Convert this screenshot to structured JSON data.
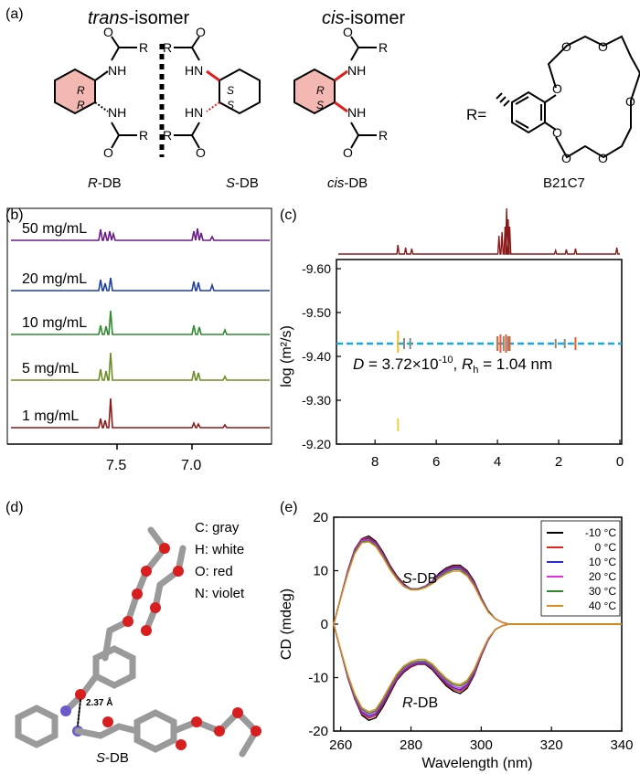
{
  "panel_a": {
    "label": "(a)",
    "trans_header": {
      "italic": "trans",
      "rest": "-isomer"
    },
    "cis_header": {
      "italic": "cis",
      "rest": "-isomer"
    },
    "captions": {
      "rdb": {
        "italic": "R",
        "rest": "-DB"
      },
      "sdb": {
        "italic": "S",
        "rest": "-DB"
      },
      "cisdb": {
        "italic": "cis",
        "rest": "-DB"
      },
      "b21c7": "B21C7"
    },
    "r_eq": "R=",
    "atoms": {
      "R": "R",
      "O": "O",
      "NH": "NH",
      "HN": "HN",
      "S": "S"
    }
  },
  "panel_b": {
    "label": "(b)",
    "traces": [
      {
        "label": "50 mg/mL",
        "color": "#6a1b8a"
      },
      {
        "label": "20 mg/mL",
        "color": "#1f3fa0"
      },
      {
        "label": "10 mg/mL",
        "color": "#2e8b2e"
      },
      {
        "label": "5 mg/mL",
        "color": "#6b8e23"
      },
      {
        "label": "1 mg/mL",
        "color": "#8b1a1a"
      }
    ],
    "x_ticks": [
      "7.5",
      "7.0"
    ]
  },
  "panel_c": {
    "label": "(c)",
    "ylabel": "log (m²/s)",
    "y_ticks": [
      "-9.60",
      "-9.50",
      "-9.40",
      "-9.30",
      "-9.20"
    ],
    "x_ticks": [
      "8",
      "6",
      "4",
      "2",
      "0"
    ],
    "annotation": {
      "d_sym": "D",
      "d_val": " = 3.72×10",
      "d_exp": "-10",
      "sep": ", ",
      "r_sym": "R",
      "r_sub": "h",
      "r_val": " = 1.04 nm"
    },
    "colors": {
      "spectrum": "#8b1a1a",
      "fit_line": "#19a8e0"
    }
  },
  "panel_d": {
    "label": "(d)",
    "legend": [
      "C: gray",
      "H: white",
      "O: red",
      "N: violet"
    ],
    "distance": "2.37 Å",
    "caption": {
      "italic": "S",
      "rest": "-DB"
    }
  },
  "panel_e": {
    "label": "(e)",
    "ylabel": "CD (mdeg)",
    "xlabel": "Wavelength (nm)",
    "legend": [
      {
        "label": "-10 °C",
        "color": "#000000"
      },
      {
        "label": "0 °C",
        "color": "#e3261c"
      },
      {
        "label": "10 °C",
        "color": "#2a2ad6"
      },
      {
        "label": "20 °C",
        "color": "#e02ee0"
      },
      {
        "label": "30 °C",
        "color": "#2b8a2b"
      },
      {
        "label": "40 °C",
        "color": "#e08a1f"
      }
    ],
    "series_labels": {
      "sdb": {
        "italic": "S",
        "rest": "-DB"
      },
      "rdb": {
        "italic": "R",
        "rest": "-DB"
      }
    }
  },
  "chart_data": {
    "type": "line",
    "xlabel": "Wavelength (nm)",
    "ylabel": "CD (mdeg)",
    "xlim": [
      258,
      340
    ],
    "ylim": [
      -20,
      20
    ],
    "x_ticks": [
      260,
      280,
      300,
      320,
      340
    ],
    "y_ticks": [
      -20,
      -10,
      0,
      10,
      20
    ],
    "legend_position": "top-right",
    "x": [
      258,
      260,
      262,
      264,
      266,
      268,
      270,
      272,
      274,
      276,
      278,
      280,
      282,
      284,
      286,
      288,
      290,
      292,
      294,
      296,
      298,
      300,
      302,
      304,
      306,
      308,
      310,
      315,
      320,
      330,
      340
    ],
    "series": [
      {
        "name": "-10 °C",
        "color": "#000000",
        "sdb": [
          0,
          5,
          10,
          14,
          16,
          16.5,
          15.5,
          13.5,
          11,
          9,
          7.5,
          6.5,
          6.5,
          7,
          8,
          9.5,
          10.5,
          11,
          11,
          10,
          8,
          5,
          2.5,
          1,
          0.3,
          0,
          0,
          0,
          0,
          0,
          0
        ],
        "rdb": [
          0,
          -5,
          -10,
          -14,
          -17,
          -18,
          -17.5,
          -15.5,
          -13,
          -10.5,
          -9,
          -8,
          -7.5,
          -7.5,
          -8.5,
          -10,
          -11.5,
          -12.5,
          -13,
          -12,
          -9.5,
          -6,
          -3,
          -1,
          -0.3,
          0,
          0,
          0,
          0,
          0,
          0
        ]
      },
      {
        "name": "0 °C",
        "color": "#e3261c",
        "sdb": [
          0,
          5,
          10,
          14,
          16,
          16.2,
          15.3,
          13.3,
          10.8,
          8.8,
          7.4,
          6.6,
          6.6,
          7.1,
          8,
          9.3,
          10.3,
          10.8,
          10.8,
          9.8,
          7.8,
          4.9,
          2.4,
          1,
          0.3,
          0,
          0,
          0,
          0,
          0,
          0
        ],
        "rdb": [
          0,
          -5,
          -10,
          -14,
          -16.8,
          -17.6,
          -17.1,
          -15.1,
          -12.7,
          -10.3,
          -8.8,
          -7.9,
          -7.4,
          -7.4,
          -8.3,
          -9.8,
          -11.2,
          -12.2,
          -12.6,
          -11.7,
          -9.3,
          -5.9,
          -2.9,
          -1,
          -0.3,
          0,
          0,
          0,
          0,
          0,
          0
        ]
      },
      {
        "name": "10 °C",
        "color": "#2a2ad6",
        "sdb": [
          0,
          5,
          10,
          13.8,
          15.8,
          16,
          15.1,
          13.1,
          10.6,
          8.7,
          7.3,
          6.6,
          6.6,
          7.1,
          7.9,
          9.2,
          10.1,
          10.6,
          10.6,
          9.6,
          7.6,
          4.8,
          2.4,
          1,
          0.3,
          0,
          0,
          0,
          0,
          0,
          0
        ],
        "rdb": [
          0,
          -5,
          -10,
          -13.8,
          -16.5,
          -17.3,
          -16.8,
          -14.8,
          -12.4,
          -10.1,
          -8.6,
          -7.7,
          -7.3,
          -7.3,
          -8.1,
          -9.6,
          -11,
          -11.9,
          -12.3,
          -11.4,
          -9.1,
          -5.8,
          -2.9,
          -1,
          -0.3,
          0,
          0,
          0,
          0,
          0,
          0
        ]
      },
      {
        "name": "20 °C",
        "color": "#e02ee0",
        "sdb": [
          0,
          5,
          9.8,
          13.6,
          15.6,
          15.8,
          14.9,
          12.9,
          10.5,
          8.6,
          7.2,
          6.5,
          6.5,
          7,
          7.8,
          9,
          9.9,
          10.4,
          10.4,
          9.4,
          7.5,
          4.7,
          2.3,
          1,
          0.3,
          0,
          0,
          0,
          0,
          0,
          0
        ],
        "rdb": [
          0,
          -5,
          -9.8,
          -13.6,
          -16.2,
          -17,
          -16.5,
          -14.5,
          -12.1,
          -9.9,
          -8.4,
          -7.5,
          -7.1,
          -7.1,
          -7.9,
          -9.4,
          -10.7,
          -11.6,
          -12,
          -11.1,
          -8.9,
          -5.7,
          -2.8,
          -1,
          -0.3,
          0,
          0,
          0,
          0,
          0,
          0
        ]
      },
      {
        "name": "30 °C",
        "color": "#2b8a2b",
        "sdb": [
          0,
          4.9,
          9.6,
          13.4,
          15.4,
          15.6,
          14.7,
          12.7,
          10.4,
          8.5,
          7.1,
          6.5,
          6.5,
          6.9,
          7.7,
          8.8,
          9.7,
          10.2,
          10.2,
          9.2,
          7.3,
          4.6,
          2.3,
          1,
          0.3,
          0,
          0,
          0,
          0,
          0,
          0
        ],
        "rdb": [
          0,
          -4.9,
          -9.6,
          -13.4,
          -15.9,
          -16.7,
          -16.2,
          -14.2,
          -11.8,
          -9.6,
          -8.1,
          -7.3,
          -6.9,
          -6.9,
          -7.7,
          -9.1,
          -10.4,
          -11.3,
          -11.6,
          -10.8,
          -8.6,
          -5.5,
          -2.7,
          -1,
          -0.3,
          0,
          0,
          0,
          0,
          0,
          0
        ]
      },
      {
        "name": "40 °C",
        "color": "#e08a1f",
        "sdb": [
          0,
          4.8,
          9.4,
          13.2,
          15.2,
          15.4,
          14.5,
          12.5,
          10.2,
          8.4,
          7,
          6.4,
          6.4,
          6.8,
          7.5,
          8.6,
          9.4,
          9.9,
          9.9,
          9,
          7.1,
          4.5,
          2.2,
          1,
          0.3,
          0,
          0,
          0,
          0,
          0,
          0
        ],
        "rdb": [
          0,
          -4.8,
          -9.4,
          -13.1,
          -15.6,
          -16.4,
          -15.9,
          -13.9,
          -11.5,
          -9.3,
          -7.8,
          -7,
          -6.6,
          -6.6,
          -7.4,
          -8.8,
          -10.1,
          -11,
          -11.3,
          -10.5,
          -8.4,
          -5.4,
          -2.7,
          -1,
          -0.3,
          0,
          0,
          0,
          0,
          0,
          0
        ]
      }
    ]
  }
}
